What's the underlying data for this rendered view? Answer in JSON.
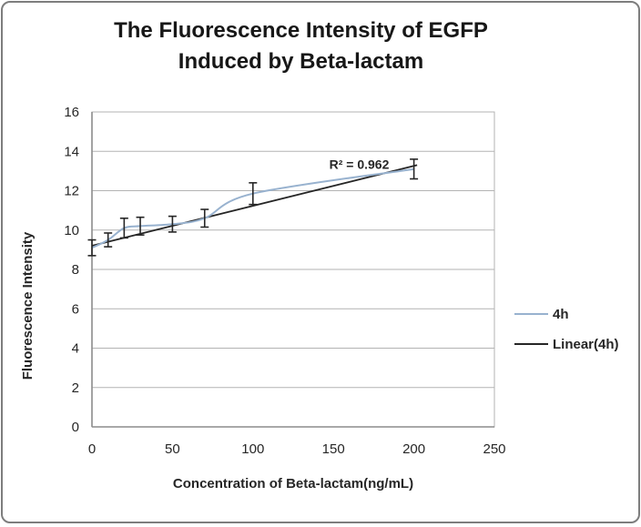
{
  "frame": {
    "border_color": "#7d7d7d",
    "background": "#ffffff"
  },
  "chart_data": {
    "type": "line",
    "title_lines": [
      "The Fluorescence Intensity of EGFP",
      "Induced by Beta-lactam"
    ],
    "xlabel": "Concentration of Beta-lactam(ng/mL)",
    "ylabel": "Fluorescence Intensity",
    "xlim": [
      0,
      250
    ],
    "ylim": [
      0,
      16
    ],
    "x_ticks": [
      0,
      50,
      100,
      150,
      200,
      250
    ],
    "y_ticks": [
      0,
      2,
      4,
      6,
      8,
      10,
      12,
      14,
      16
    ],
    "grid": "horizontal",
    "grid_color": "#b3b3b3",
    "axis_color": "#8c8c8c",
    "series": [
      {
        "name": "4h",
        "color": "#98b2cf",
        "smooth": true,
        "x": [
          0,
          10,
          20,
          30,
          50,
          70,
          100,
          200
        ],
        "y": [
          9.1,
          9.5,
          10.1,
          10.2,
          10.3,
          10.6,
          11.85,
          13.1
        ],
        "y_err": [
          0.4,
          0.35,
          0.5,
          0.45,
          0.4,
          0.45,
          0.55,
          0.5
        ],
        "error_bar_color": "#262626"
      }
    ],
    "trendline": {
      "name": "Linear(4h)",
      "color": "#262626",
      "x1": 0,
      "y1": 9.2,
      "x2": 202,
      "y2": 13.3
    },
    "annotation": {
      "text": "R² = 0.962",
      "x": 166,
      "y": 13.35
    },
    "legend": {
      "position": "right",
      "items": [
        {
          "label": "4h",
          "color": "#98b2cf"
        },
        {
          "label": "Linear(4h)",
          "color": "#262626"
        }
      ]
    }
  }
}
